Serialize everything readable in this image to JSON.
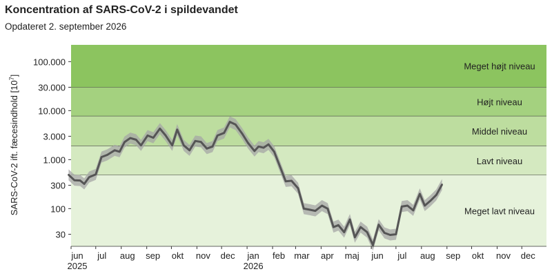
{
  "chart_data": {
    "type": "line",
    "title": "Koncentration af SARS-CoV-2 i spildevandet",
    "subtitle": "Opdateret 2. september 2026",
    "ylabel": "SARS-CoV-2 ift. fæcesindhold [10",
    "ylabel_exp": "7",
    "ylabel_close": "]",
    "yscale": "log",
    "ylim": [
      17,
      220000
    ],
    "y_ticks": [
      {
        "value": 30,
        "label": "30"
      },
      {
        "value": 100,
        "label": "100"
      },
      {
        "value": 300,
        "label": "300"
      },
      {
        "value": 1000,
        "label": "1.000"
      },
      {
        "value": 3000,
        "label": "3.000"
      },
      {
        "value": 10000,
        "label": "10.000"
      },
      {
        "value": 30000,
        "label": "30.000"
      },
      {
        "value": 100000,
        "label": "100.000"
      }
    ],
    "xlim": [
      "2025-06-01",
      "2026-12-31"
    ],
    "x_ticks": [
      {
        "date": "2025-06-01",
        "label": "jun",
        "year": "2025"
      },
      {
        "date": "2025-07-01",
        "label": "jul",
        "year": ""
      },
      {
        "date": "2025-08-01",
        "label": "aug",
        "year": ""
      },
      {
        "date": "2025-09-01",
        "label": "sep",
        "year": ""
      },
      {
        "date": "2025-10-01",
        "label": "okt",
        "year": ""
      },
      {
        "date": "2025-11-01",
        "label": "nov",
        "year": ""
      },
      {
        "date": "2025-12-01",
        "label": "dec",
        "year": ""
      },
      {
        "date": "2026-01-01",
        "label": "jan",
        "year": "2026"
      },
      {
        "date": "2026-02-01",
        "label": "feb",
        "year": ""
      },
      {
        "date": "2026-03-01",
        "label": "mar",
        "year": ""
      },
      {
        "date": "2026-04-01",
        "label": "apr",
        "year": ""
      },
      {
        "date": "2026-05-01",
        "label": "maj",
        "year": ""
      },
      {
        "date": "2026-06-01",
        "label": "jun",
        "year": ""
      },
      {
        "date": "2026-07-01",
        "label": "jul",
        "year": ""
      },
      {
        "date": "2026-08-01",
        "label": "aug",
        "year": ""
      },
      {
        "date": "2026-09-01",
        "label": "sep",
        "year": ""
      },
      {
        "date": "2026-10-01",
        "label": "okt",
        "year": ""
      },
      {
        "date": "2026-11-01",
        "label": "nov",
        "year": ""
      },
      {
        "date": "2026-12-01",
        "label": "dec",
        "year": ""
      }
    ],
    "bands": [
      {
        "label": "Meget højt niveau",
        "from": 30000,
        "to": 220000,
        "color": "#8cc45f"
      },
      {
        "label": "Højt niveau",
        "from": 7700,
        "to": 30000,
        "color": "#a4d17f"
      },
      {
        "label": "Middel niveau",
        "from": 1900,
        "to": 7700,
        "color": "#bddd9f"
      },
      {
        "label": "Lavt niveau",
        "from": 480,
        "to": 1900,
        "color": "#d4e9c0"
      },
      {
        "label": "Meget lavt niveau",
        "from": 17,
        "to": 480,
        "color": "#e6f2db"
      }
    ],
    "series": [
      {
        "color": "#555555",
        "band_color": "#a6a6a6",
        "points": [
          {
            "date": "2025-05-29",
            "value": 490
          },
          {
            "date": "2025-06-05",
            "value": 380
          },
          {
            "date": "2025-06-12",
            "value": 375
          },
          {
            "date": "2025-06-17",
            "value": 320
          },
          {
            "date": "2025-06-23",
            "value": 440
          },
          {
            "date": "2025-07-01",
            "value": 500
          },
          {
            "date": "2025-07-08",
            "value": 1130
          },
          {
            "date": "2025-07-15",
            "value": 1250
          },
          {
            "date": "2025-07-24",
            "value": 1550
          },
          {
            "date": "2025-07-30",
            "value": 1450
          },
          {
            "date": "2025-08-05",
            "value": 2280
          },
          {
            "date": "2025-08-12",
            "value": 2750
          },
          {
            "date": "2025-08-19",
            "value": 2550
          },
          {
            "date": "2025-08-25",
            "value": 1950
          },
          {
            "date": "2025-09-02",
            "value": 3100
          },
          {
            "date": "2025-09-09",
            "value": 2800
          },
          {
            "date": "2025-09-17",
            "value": 4300
          },
          {
            "date": "2025-09-24",
            "value": 3100
          },
          {
            "date": "2025-10-02",
            "value": 1950
          },
          {
            "date": "2025-10-08",
            "value": 4100
          },
          {
            "date": "2025-10-16",
            "value": 1950
          },
          {
            "date": "2025-10-23",
            "value": 1550
          },
          {
            "date": "2025-10-30",
            "value": 2400
          },
          {
            "date": "2025-11-06",
            "value": 2300
          },
          {
            "date": "2025-11-13",
            "value": 1680
          },
          {
            "date": "2025-11-20",
            "value": 1850
          },
          {
            "date": "2025-11-26",
            "value": 3100
          },
          {
            "date": "2025-12-04",
            "value": 3500
          },
          {
            "date": "2025-12-11",
            "value": 5900
          },
          {
            "date": "2025-12-18",
            "value": 5200
          },
          {
            "date": "2025-12-26",
            "value": 3400
          },
          {
            "date": "2026-01-02",
            "value": 2200
          },
          {
            "date": "2026-01-10",
            "value": 1500
          },
          {
            "date": "2026-01-15",
            "value": 1850
          },
          {
            "date": "2026-01-21",
            "value": 1750
          },
          {
            "date": "2026-01-27",
            "value": 2050
          },
          {
            "date": "2026-02-03",
            "value": 1450
          },
          {
            "date": "2026-02-10",
            "value": 720
          },
          {
            "date": "2026-02-17",
            "value": 360
          },
          {
            "date": "2026-02-24",
            "value": 370
          },
          {
            "date": "2026-03-04",
            "value": 260
          },
          {
            "date": "2026-03-11",
            "value": 100
          },
          {
            "date": "2026-03-18",
            "value": 95
          },
          {
            "date": "2026-03-25",
            "value": 90
          },
          {
            "date": "2026-04-02",
            "value": 115
          },
          {
            "date": "2026-04-09",
            "value": 100
          },
          {
            "date": "2026-04-16",
            "value": 42
          },
          {
            "date": "2026-04-22",
            "value": 46
          },
          {
            "date": "2026-04-29",
            "value": 33
          },
          {
            "date": "2026-05-06",
            "value": 60
          },
          {
            "date": "2026-05-12",
            "value": 26
          },
          {
            "date": "2026-05-19",
            "value": 42
          },
          {
            "date": "2026-05-27",
            "value": 33
          },
          {
            "date": "2026-06-03",
            "value": 18
          },
          {
            "date": "2026-06-10",
            "value": 47
          },
          {
            "date": "2026-06-17",
            "value": 32
          },
          {
            "date": "2026-06-24",
            "value": 29
          },
          {
            "date": "2026-07-01",
            "value": 30
          },
          {
            "date": "2026-07-08",
            "value": 110
          },
          {
            "date": "2026-07-15",
            "value": 115
          },
          {
            "date": "2026-07-22",
            "value": 92
          },
          {
            "date": "2026-07-30",
            "value": 200
          },
          {
            "date": "2026-08-05",
            "value": 115
          },
          {
            "date": "2026-08-12",
            "value": 145
          },
          {
            "date": "2026-08-19",
            "value": 190
          },
          {
            "date": "2026-08-26",
            "value": 310
          }
        ]
      }
    ]
  }
}
